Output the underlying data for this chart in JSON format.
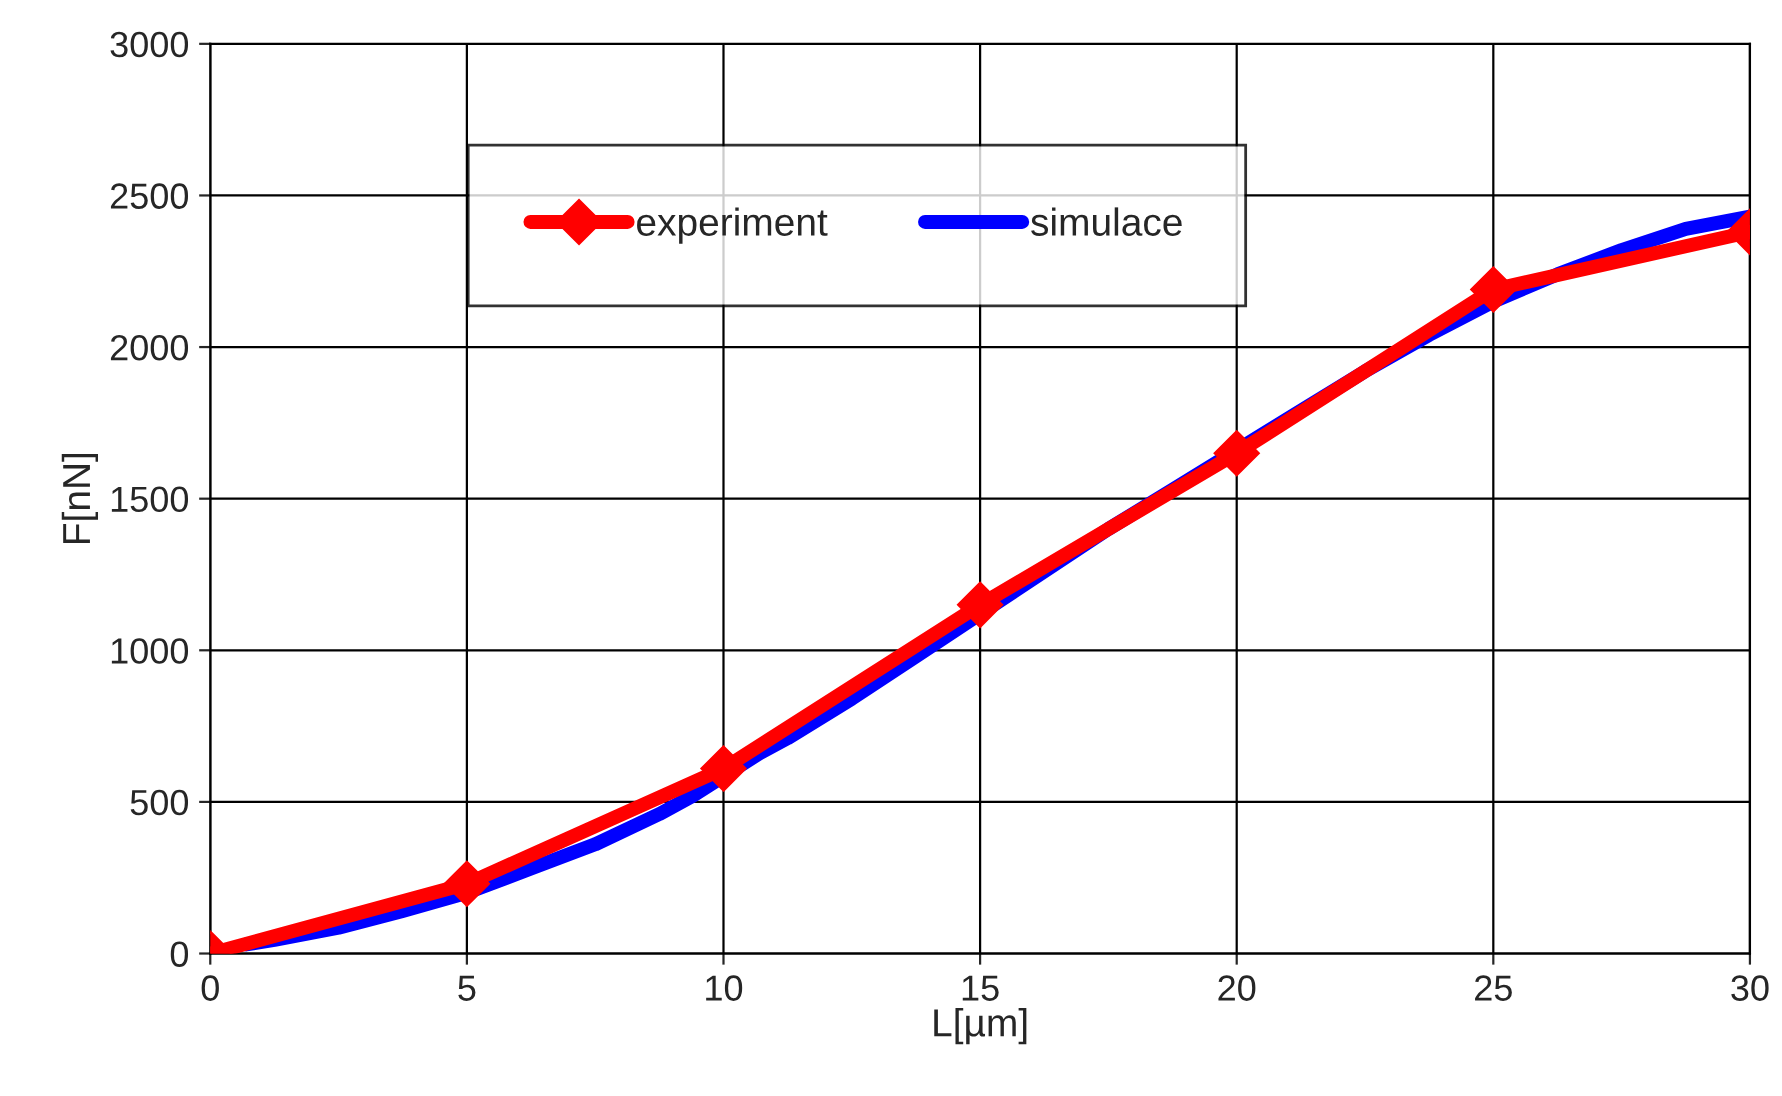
{
  "chart_data": {
    "type": "line",
    "xlabel": "L[µm]",
    "ylabel": "F[nN]",
    "xlim": [
      0,
      30
    ],
    "ylim": [
      0,
      3000
    ],
    "xticks": [
      0,
      5,
      10,
      15,
      20,
      25,
      30
    ],
    "yticks": [
      0,
      500,
      1000,
      1500,
      2000,
      2500,
      3000
    ],
    "grid": true,
    "legend": "top",
    "series": [
      {
        "name": "experiment",
        "color": "#ff0000",
        "marker": "diamond",
        "x": [
          0,
          5,
          10,
          15,
          20,
          25,
          30
        ],
        "values": [
          0,
          230,
          610,
          1150,
          1650,
          2190,
          2380
        ]
      },
      {
        "name": "simulace",
        "color": "#0000ff",
        "marker": "none",
        "x": [
          0.7,
          1.25,
          2.5,
          3.75,
          5,
          6.25,
          7.5,
          8.75,
          9.4,
          10.7,
          11.25,
          12.5,
          13.75,
          15,
          16.25,
          17.5,
          18.75,
          20,
          21.25,
          22.5,
          23.75,
          25,
          26.25,
          27.5,
          28.75,
          30
        ],
        "values": [
          30,
          45,
          85,
          140,
          200,
          280,
          360,
          460,
          520,
          660,
          710,
          840,
          980,
          1120,
          1260,
          1400,
          1530,
          1660,
          1790,
          1920,
          2040,
          2150,
          2240,
          2320,
          2390,
          2430
        ]
      }
    ]
  }
}
